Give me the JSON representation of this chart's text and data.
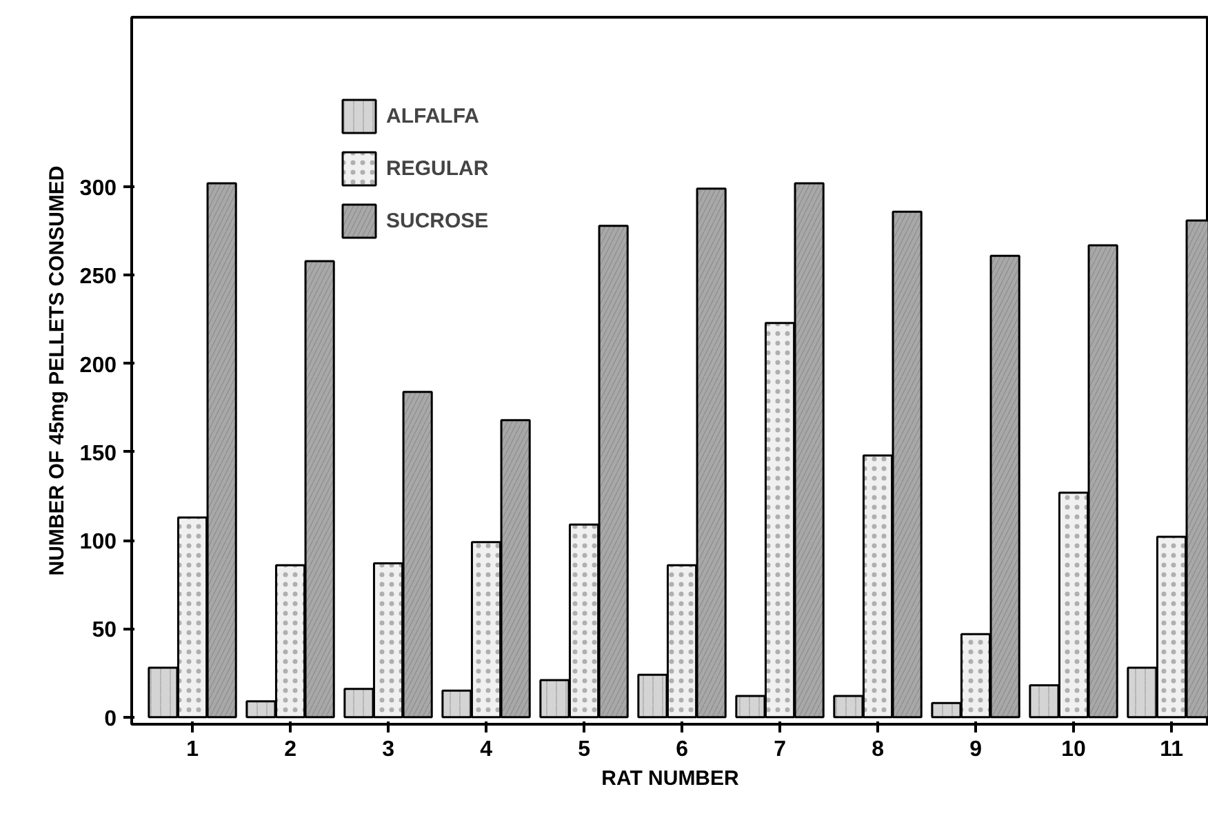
{
  "chart_data": {
    "type": "bar",
    "xlabel": "RAT NUMBER",
    "ylabel": "NUMBER OF 45mg PELLETS CONSUMED",
    "categories": [
      "1",
      "2",
      "3",
      "4",
      "5",
      "6",
      "7",
      "8",
      "9",
      "10",
      "11"
    ],
    "series": [
      {
        "name": "ALFALFA",
        "color": "#d4d4d4",
        "values": [
          28,
          9,
          16,
          15,
          21,
          24,
          12,
          12,
          8,
          18,
          28
        ]
      },
      {
        "name": "REGULAR",
        "color": "#f0f0f0",
        "values": [
          113,
          86,
          87,
          99,
          109,
          86,
          223,
          148,
          47,
          127,
          102
        ]
      },
      {
        "name": "SUCROSE",
        "color": "#a8a8a8",
        "values": [
          302,
          258,
          184,
          168,
          278,
          299,
          302,
          286,
          261,
          267,
          281
        ]
      }
    ],
    "ylim": [
      -4,
      396
    ],
    "yticks": [
      0,
      50,
      100,
      150,
      200,
      250,
      300
    ],
    "grid": false,
    "legend": "top left"
  }
}
